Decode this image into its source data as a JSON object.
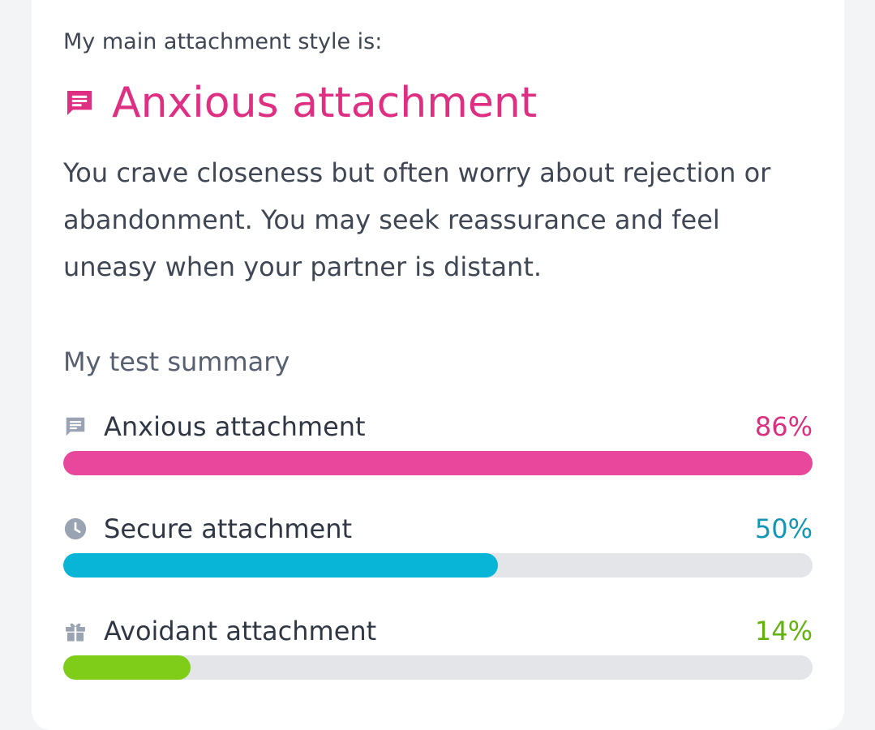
{
  "result": {
    "intro": "My main attachment style is:",
    "title": "Anxious attachment",
    "description": "You crave closeness but often worry about rejection or abandonment. You may seek reassurance and feel uneasy when your partner is distant.",
    "icon": "message-icon",
    "color": "#df2f83"
  },
  "summary": {
    "title": "My test summary",
    "items": [
      {
        "label": "Anxious attachment",
        "percent_label": "86%",
        "icon": "message-icon",
        "color": "#e9479b",
        "text_color": "#db2f7f",
        "progress": 1.0
      },
      {
        "label": "Secure attachment",
        "percent_label": "50%",
        "icon": "clock-icon",
        "color": "#08b5d6",
        "text_color": "#1296b5",
        "progress": 0.58
      },
      {
        "label": "Avoidant attachment",
        "percent_label": "14%",
        "icon": "gift-icon",
        "color": "#7fcc19",
        "text_color": "#62b20d",
        "progress": 0.17
      }
    ]
  }
}
